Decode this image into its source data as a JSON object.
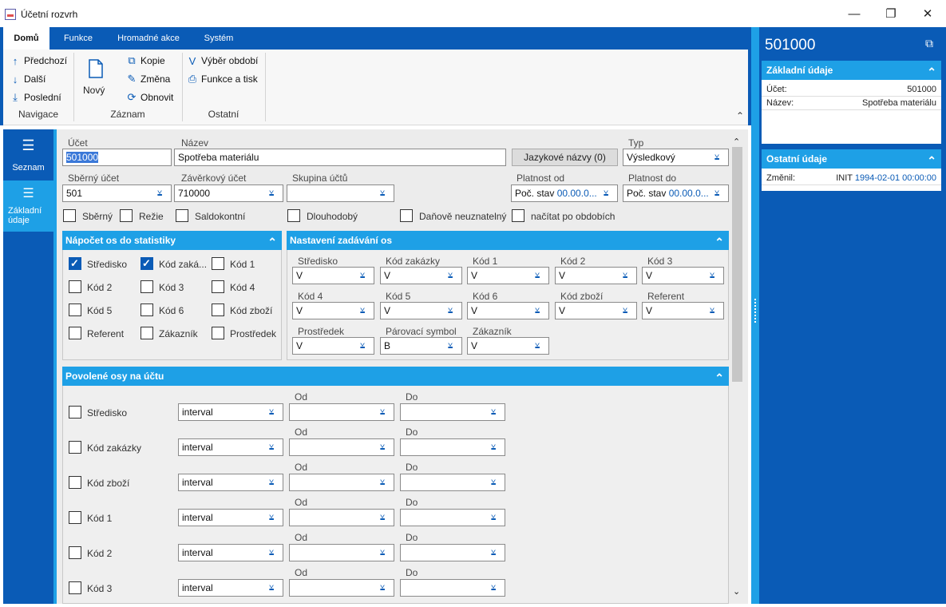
{
  "window": {
    "title": "Účetní rozvrh",
    "minimize": "—",
    "restore": "❐",
    "close": "✕"
  },
  "ribbon": {
    "tabs": [
      "Domů",
      "Funkce",
      "Hromadné akce",
      "Systém"
    ],
    "navigation": {
      "prev": "Předchozí",
      "next": "Další",
      "last": "Poslední",
      "group": "Navigace"
    },
    "record": {
      "new": "Nový",
      "copy": "Kopie",
      "change": "Změna",
      "refresh": "Obnovit",
      "group": "Záznam"
    },
    "other": {
      "period": "Výběr období",
      "print": "Funkce a tisk",
      "group": "Ostatní"
    }
  },
  "leftnav": {
    "list": "Seznam",
    "basic1": "Základní",
    "basic2": "údaje"
  },
  "form": {
    "account_label": "Účet",
    "account_value": "501000",
    "name_label": "Název",
    "name_value": "Spotřeba materiálu",
    "lang_button": "Jazykové názvy (0)",
    "type_label": "Typ",
    "type_value": "Výsledkový",
    "collective_label": "Sběrný účet",
    "collective_value": "501",
    "closing_label": "Závěrkový účet",
    "closing_value": "710000",
    "group_label": "Skupina účtů",
    "group_value": "",
    "valid_from_label": "Platnost od",
    "valid_from_a": "Poč. stav",
    "valid_from_b": "00.00.0...",
    "valid_to_label": "Platnost do",
    "valid_to_a": "Poč. stav",
    "valid_to_b": "00.00.0...",
    "checks": {
      "sberny": "Sběrný",
      "rezie": "Režie",
      "saldo": "Saldokontní",
      "dlouho": "Dlouhodobý",
      "danove": "Daňově neuznatelný",
      "nacitat": "načítat po obdobích"
    }
  },
  "stats": {
    "title": "Nápočet os do statistiky",
    "items": [
      {
        "label": "Středisko",
        "on": true
      },
      {
        "label": "Kód zaká...",
        "on": true
      },
      {
        "label": "Kód 1",
        "on": false
      },
      {
        "label": "Kód 2",
        "on": false
      },
      {
        "label": "Kód 3",
        "on": false
      },
      {
        "label": "Kód 4",
        "on": false
      },
      {
        "label": "Kód 5",
        "on": false
      },
      {
        "label": "Kód 6",
        "on": false
      },
      {
        "label": "Kód zboží",
        "on": false
      },
      {
        "label": "Referent",
        "on": false
      },
      {
        "label": "Zákazník",
        "on": false
      },
      {
        "label": "Prostředek",
        "on": false
      }
    ]
  },
  "settings": {
    "title": "Nastavení zadávání os",
    "items": [
      {
        "label": "Středisko",
        "value": "V"
      },
      {
        "label": "Kód zakázky",
        "value": "V"
      },
      {
        "label": "Kód 1",
        "value": "V"
      },
      {
        "label": "Kód 2",
        "value": "V"
      },
      {
        "label": "Kód 3",
        "value": "V"
      },
      {
        "label": "Kód 4",
        "value": "V"
      },
      {
        "label": "Kód 5",
        "value": "V"
      },
      {
        "label": "Kód 6",
        "value": "V"
      },
      {
        "label": "Kód zboží",
        "value": "V"
      },
      {
        "label": "Referent",
        "value": "V"
      },
      {
        "label": "Prostředek",
        "value": "V"
      },
      {
        "label": "Párovací symbol",
        "value": "B"
      },
      {
        "label": "Zákazník",
        "value": "V"
      }
    ]
  },
  "allowed": {
    "title": "Povolené osy na účtu",
    "from_label": "Od",
    "to_label": "Do",
    "rows": [
      {
        "label": "Středisko",
        "mode": "interval"
      },
      {
        "label": "Kód zakázky",
        "mode": "interval"
      },
      {
        "label": "Kód zboží",
        "mode": "interval"
      },
      {
        "label": "Kód 1",
        "mode": "interval"
      },
      {
        "label": "Kód 2",
        "mode": "interval"
      },
      {
        "label": "Kód 3",
        "mode": "interval"
      }
    ]
  },
  "right": {
    "header": "501000",
    "basic_title": "Základní údaje",
    "ucet_k": "Účet:",
    "ucet_v": "501000",
    "nazev_k": "Název:",
    "nazev_v": "Spotřeba materiálu",
    "other_title": "Ostatní údaje",
    "zmenil_k": "Změnil:",
    "zmenil_user": "INIT",
    "zmenil_date": "1994-02-01 00:00:00"
  },
  "colors": {
    "primary": "#0a5bb6",
    "accent": "#1ea0e6"
  }
}
